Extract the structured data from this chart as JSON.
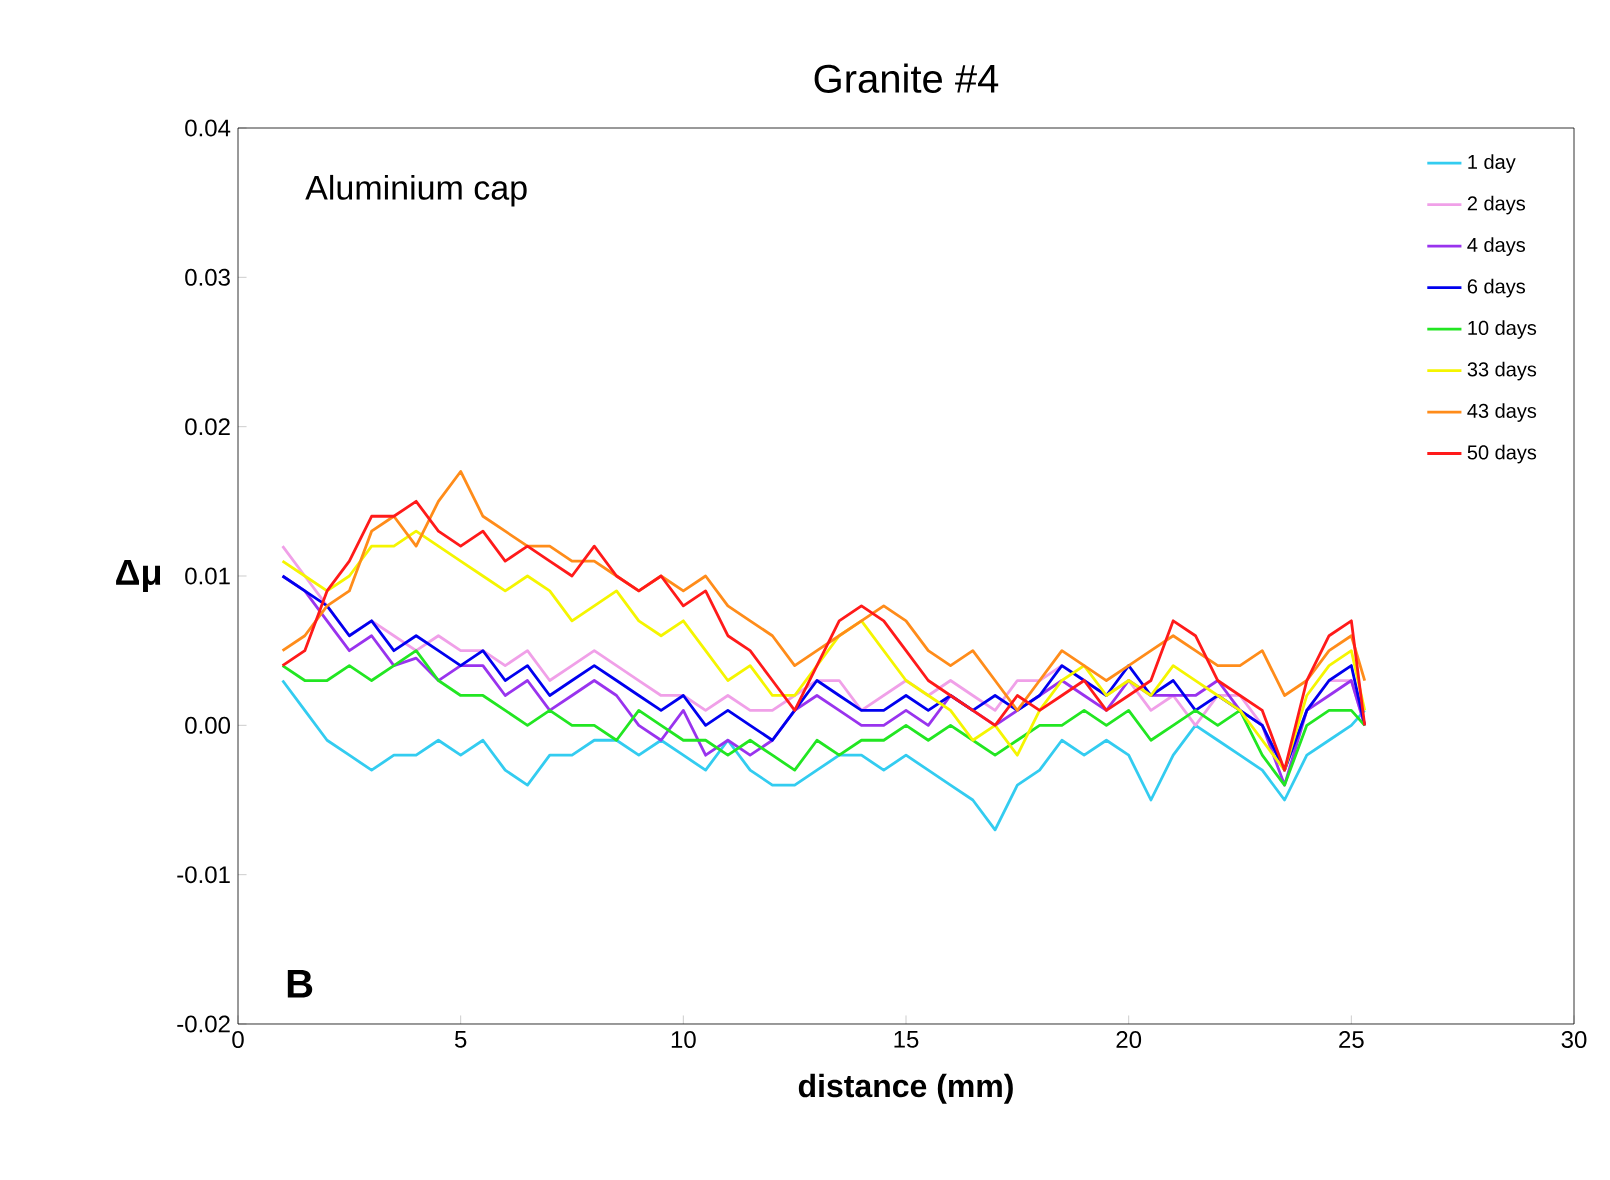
{
  "chart_data": {
    "type": "line",
    "title": "Granite #4",
    "xlabel": "distance (mm)",
    "ylabel": "Δμ",
    "annotations": [
      "Aluminium cap",
      "**B**"
    ],
    "xlim": [
      0,
      30
    ],
    "xticks": [
      0,
      5,
      10,
      15,
      20,
      25,
      30
    ],
    "ylim": [
      -0.02,
      0.04
    ],
    "yticks": [
      {
        "value": -0.02,
        "label": "-0.02"
      },
      {
        "value": -0.01,
        "label": "-0.01"
      },
      {
        "value": 0,
        "label": "0.00"
      },
      {
        "value": 0.01,
        "label": "0.01"
      },
      {
        "value": 0.02,
        "label": "0.02"
      },
      {
        "value": 0.03,
        "label": "0.03"
      },
      {
        "value": 0.04,
        "label": "0.04"
      }
    ],
    "grid": false,
    "legend": "top right",
    "marker": "none",
    "line_style": "solid",
    "x": [
      1,
      1.5,
      2,
      2.5,
      3,
      3.5,
      4,
      4.5,
      5,
      5.5,
      6,
      6.5,
      7,
      7.5,
      8,
      8.5,
      9,
      9.5,
      10,
      10.5,
      11,
      11.5,
      12,
      12.5,
      13,
      13.5,
      14,
      14.5,
      15,
      15.5,
      16,
      16.5,
      17,
      17.5,
      18,
      18.5,
      19,
      19.5,
      20,
      20.5,
      21,
      21.5,
      22,
      22.5,
      23,
      23.5,
      24,
      24.5,
      25,
      25.3
    ],
    "series": [
      {
        "name": "1 day",
        "color": "#33ccf0",
        "values": [
          0.003,
          0.001,
          -0.001,
          -0.002,
          -0.003,
          -0.002,
          -0.002,
          -0.001,
          -0.002,
          -0.001,
          -0.003,
          -0.004,
          -0.002,
          -0.002,
          -0.001,
          -0.001,
          -0.002,
          -0.001,
          -0.002,
          -0.003,
          -0.001,
          -0.003,
          -0.004,
          -0.004,
          -0.003,
          -0.002,
          -0.002,
          -0.003,
          -0.002,
          -0.003,
          -0.004,
          -0.005,
          -0.007,
          -0.004,
          -0.003,
          -0.001,
          -0.002,
          -0.001,
          -0.002,
          -0.005,
          -0.002,
          0,
          -0.001,
          -0.002,
          -0.003,
          -0.005,
          -0.002,
          -0.001,
          0,
          0.001
        ]
      },
      {
        "name": "2 days",
        "color": "#f0a0e8",
        "values": [
          0.012,
          0.01,
          0.008,
          0.006,
          0.007,
          0.006,
          0.005,
          0.006,
          0.005,
          0.005,
          0.004,
          0.005,
          0.003,
          0.004,
          0.005,
          0.004,
          0.003,
          0.002,
          0.002,
          0.001,
          0.002,
          0.001,
          0.001,
          0.002,
          0.003,
          0.003,
          0.001,
          0.002,
          0.003,
          0.002,
          0.003,
          0.002,
          0.001,
          0.003,
          0.003,
          0.004,
          0.003,
          0.002,
          0.003,
          0.001,
          0.002,
          0,
          0.002,
          0.002,
          0,
          -0.003,
          0.001,
          0.003,
          0.003,
          0
        ]
      },
      {
        "name": "4 days",
        "color": "#9933ee",
        "values": [
          0.01,
          0.009,
          0.007,
          0.005,
          0.006,
          0.004,
          0.0045,
          0.003,
          0.004,
          0.004,
          0.002,
          0.003,
          0.001,
          0.002,
          0.003,
          0.002,
          0,
          -0.001,
          0.001,
          -0.002,
          -0.001,
          -0.002,
          -0.001,
          0.001,
          0.002,
          0.001,
          0,
          0,
          0.001,
          0,
          0.002,
          0.001,
          0,
          0.001,
          0.002,
          0.003,
          0.002,
          0.001,
          0.003,
          0.002,
          0.002,
          0.002,
          0.003,
          0.001,
          0,
          -0.004,
          0.001,
          0.002,
          0.003,
          0
        ]
      },
      {
        "name": "6 days",
        "color": "#0000ee",
        "values": [
          0.01,
          0.009,
          0.008,
          0.006,
          0.007,
          0.005,
          0.006,
          0.005,
          0.004,
          0.005,
          0.003,
          0.004,
          0.002,
          0.003,
          0.004,
          0.003,
          0.002,
          0.001,
          0.002,
          0,
          0.001,
          0,
          -0.001,
          0.001,
          0.003,
          0.002,
          0.001,
          0.001,
          0.002,
          0.001,
          0.002,
          0.001,
          0.002,
          0.001,
          0.002,
          0.004,
          0.003,
          0.002,
          0.004,
          0.002,
          0.003,
          0.001,
          0.002,
          0.001,
          0,
          -0.003,
          0.001,
          0.003,
          0.004,
          0
        ]
      },
      {
        "name": "10 days",
        "color": "#22e622",
        "values": [
          0.004,
          0.003,
          0.003,
          0.004,
          0.003,
          0.004,
          0.005,
          0.003,
          0.002,
          0.002,
          0.001,
          0,
          0.001,
          0,
          0,
          -0.001,
          0.001,
          0,
          -0.001,
          -0.001,
          -0.002,
          -0.001,
          -0.002,
          -0.003,
          -0.001,
          -0.002,
          -0.001,
          -0.001,
          0,
          -0.001,
          0,
          -0.001,
          -0.002,
          -0.001,
          0,
          0,
          0.001,
          0,
          0.001,
          -0.001,
          0,
          0.001,
          0,
          0.001,
          -0.002,
          -0.004,
          0,
          0.001,
          0.001,
          0
        ]
      },
      {
        "name": "33 days",
        "color": "#f5f500",
        "values": [
          0.011,
          0.01,
          0.009,
          0.01,
          0.012,
          0.012,
          0.013,
          0.012,
          0.011,
          0.01,
          0.009,
          0.01,
          0.009,
          0.007,
          0.008,
          0.009,
          0.007,
          0.006,
          0.007,
          0.005,
          0.003,
          0.004,
          0.002,
          0.002,
          0.004,
          0.006,
          0.007,
          0.005,
          0.003,
          0.002,
          0.001,
          -0.001,
          0,
          -0.002,
          0.001,
          0.003,
          0.004,
          0.002,
          0.003,
          0.002,
          0.004,
          0.003,
          0.002,
          0.001,
          -0.001,
          -0.003,
          0.002,
          0.004,
          0.005,
          0.001
        ]
      },
      {
        "name": "43 days",
        "color": "#ff8c1a",
        "values": [
          0.005,
          0.006,
          0.008,
          0.009,
          0.013,
          0.014,
          0.012,
          0.015,
          0.017,
          0.014,
          0.013,
          0.012,
          0.012,
          0.011,
          0.011,
          0.01,
          0.009,
          0.01,
          0.009,
          0.01,
          0.008,
          0.007,
          0.006,
          0.004,
          0.005,
          0.006,
          0.007,
          0.008,
          0.007,
          0.005,
          0.004,
          0.005,
          0.003,
          0.001,
          0.003,
          0.005,
          0.004,
          0.003,
          0.004,
          0.005,
          0.006,
          0.005,
          0.004,
          0.004,
          0.005,
          0.002,
          0.003,
          0.005,
          0.006,
          0.003
        ]
      },
      {
        "name": "50 days",
        "color": "#ff1a1a",
        "values": [
          0.004,
          0.005,
          0.009,
          0.011,
          0.014,
          0.014,
          0.015,
          0.013,
          0.012,
          0.013,
          0.011,
          0.012,
          0.011,
          0.01,
          0.012,
          0.01,
          0.009,
          0.01,
          0.008,
          0.009,
          0.006,
          0.005,
          0.003,
          0.001,
          0.004,
          0.007,
          0.008,
          0.007,
          0.005,
          0.003,
          0.002,
          0.001,
          0,
          0.002,
          0.001,
          0.002,
          0.003,
          0.001,
          0.002,
          0.003,
          0.007,
          0.006,
          0.003,
          0.002,
          0.001,
          -0.003,
          0.003,
          0.006,
          0.007,
          0
        ]
      }
    ]
  }
}
